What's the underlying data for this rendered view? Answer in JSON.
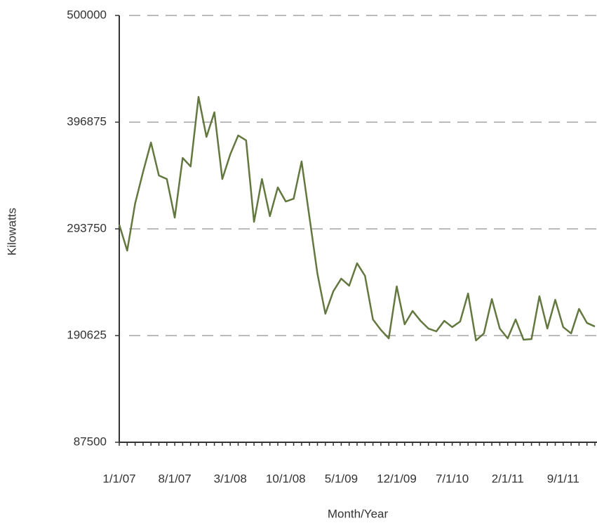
{
  "chart_data": {
    "type": "line",
    "x_label": "Month/Year",
    "y_label": "Kilowatts",
    "categories": [
      "1/1/07",
      null,
      null,
      null,
      null,
      null,
      null,
      "8/1/07",
      null,
      null,
      null,
      null,
      null,
      null,
      "3/1/08",
      null,
      null,
      null,
      null,
      null,
      null,
      "10/1/08",
      null,
      null,
      null,
      null,
      null,
      null,
      "5/1/09",
      null,
      null,
      null,
      null,
      null,
      null,
      "12/1/09",
      null,
      null,
      null,
      null,
      null,
      null,
      "7/1/10",
      null,
      null,
      null,
      null,
      null,
      null,
      "2/1/11",
      null,
      null,
      null,
      null,
      null,
      null,
      "9/1/11",
      null,
      null,
      null,
      null
    ],
    "series": [
      {
        "name": "Kilowatts",
        "color": "#63783f",
        "values": [
          297800,
          272700,
          318200,
          348700,
          377200,
          345300,
          341900,
          304600,
          362300,
          354100,
          421300,
          382600,
          406400,
          341900,
          365700,
          384000,
          379300,
          300500,
          341900,
          306000,
          333800,
          320200,
          322900,
          358900,
          304600,
          250300,
          211700,
          233400,
          245600,
          238800,
          260500,
          248300,
          206200,
          196100,
          187900,
          238100,
          201500,
          214400,
          204900,
          197400,
          194700,
          204900,
          198800,
          204200,
          231300,
          185900,
          192700,
          225900,
          197400,
          187900,
          206200,
          186600,
          187200,
          228600,
          197400,
          225200,
          198800,
          192700,
          216400,
          202800,
          199400
        ]
      }
    ],
    "ylim": [
      87500,
      500000
    ],
    "yticks": [
      87500,
      190625,
      293750,
      396875,
      500000
    ],
    "grid": true
  }
}
